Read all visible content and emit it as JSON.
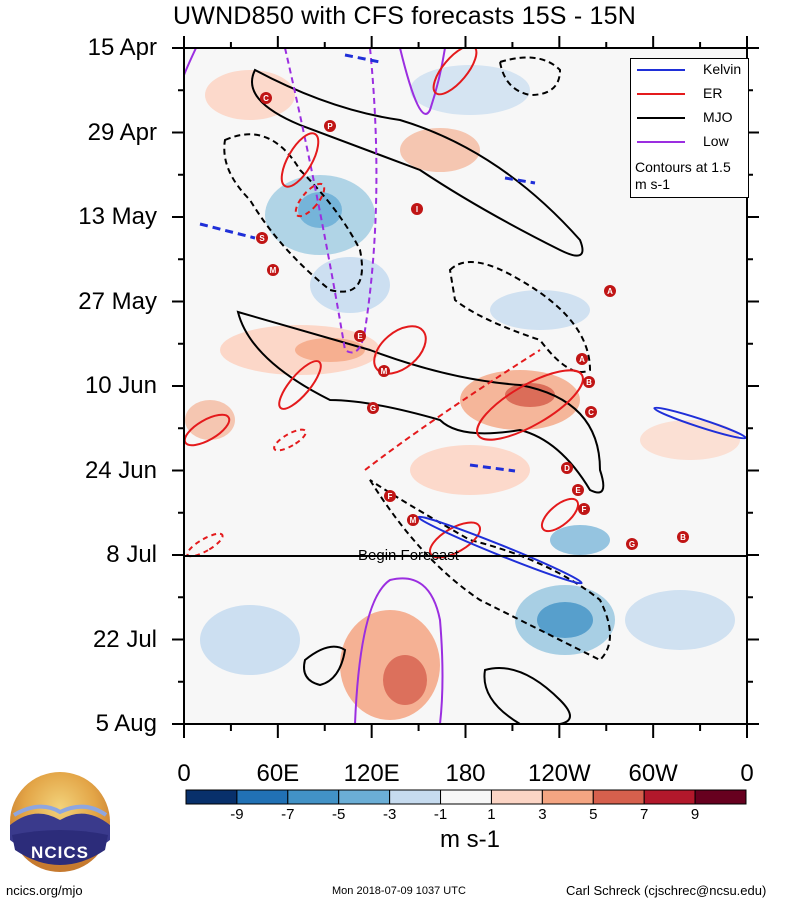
{
  "header": {
    "title": "UWND850 with CFS forecasts  15S - 15N"
  },
  "chart_data": {
    "type": "heatmap",
    "title": "UWND850 with CFS forecasts  15S - 15N",
    "xlabel": "",
    "ylabel": "",
    "x_tick_labels": [
      "0",
      "60E",
      "120E",
      "180",
      "120W",
      "60W",
      "0"
    ],
    "y_tick_labels": [
      "15 Apr",
      "29 Apr",
      "13 May",
      "27 May",
      "10 Jun",
      "24 Jun",
      "8 Jul",
      "22 Jul",
      "5 Aug"
    ],
    "xlim": [
      0,
      360
    ],
    "time_range": [
      "15 Apr",
      "5 Aug"
    ],
    "forecast_start": "8 Jul",
    "forecast_label": "Begin Forecast",
    "colorbar": {
      "label": "m s-1",
      "levels": [
        "-9",
        "-7",
        "-5",
        "-3",
        "-1",
        "1",
        "3",
        "5",
        "7",
        "9"
      ],
      "colors": [
        "#08306b",
        "#2171b5",
        "#4292c6",
        "#6baed6",
        "#c6dbef",
        "#f7f7f7",
        "#fcd5c5",
        "#f4a582",
        "#d6604d",
        "#b2182b",
        "#67001f"
      ]
    },
    "legend": {
      "entries": [
        {
          "name": "Kelvin",
          "color": "#1f2fd8"
        },
        {
          "name": "ER",
          "color": "#e41a1c"
        },
        {
          "name": "MJO",
          "color": "#000000"
        },
        {
          "name": "Low",
          "color": "#9b2ee0"
        }
      ],
      "note": "Contours at 1.5 m s-1",
      "position": "top-right"
    },
    "storm_markers": [
      "C",
      "P",
      "I",
      "S",
      "M",
      "E",
      "M",
      "G",
      "F",
      "M",
      "A",
      "B",
      "C",
      "D",
      "E",
      "F",
      "G",
      "B",
      "A"
    ]
  },
  "footer": {
    "logo_text": "NCICS",
    "site": "ncics.org/mjo",
    "timestamp": "Mon 2018-07-09 1037 UTC",
    "credit": "Carl Schreck (cjschrec@ncsu.edu)"
  },
  "colors": {
    "kelvin": "#1f2fd8",
    "er": "#e41a1c",
    "mjo": "#000000",
    "low": "#9b2ee0",
    "storm": "#c01515"
  }
}
